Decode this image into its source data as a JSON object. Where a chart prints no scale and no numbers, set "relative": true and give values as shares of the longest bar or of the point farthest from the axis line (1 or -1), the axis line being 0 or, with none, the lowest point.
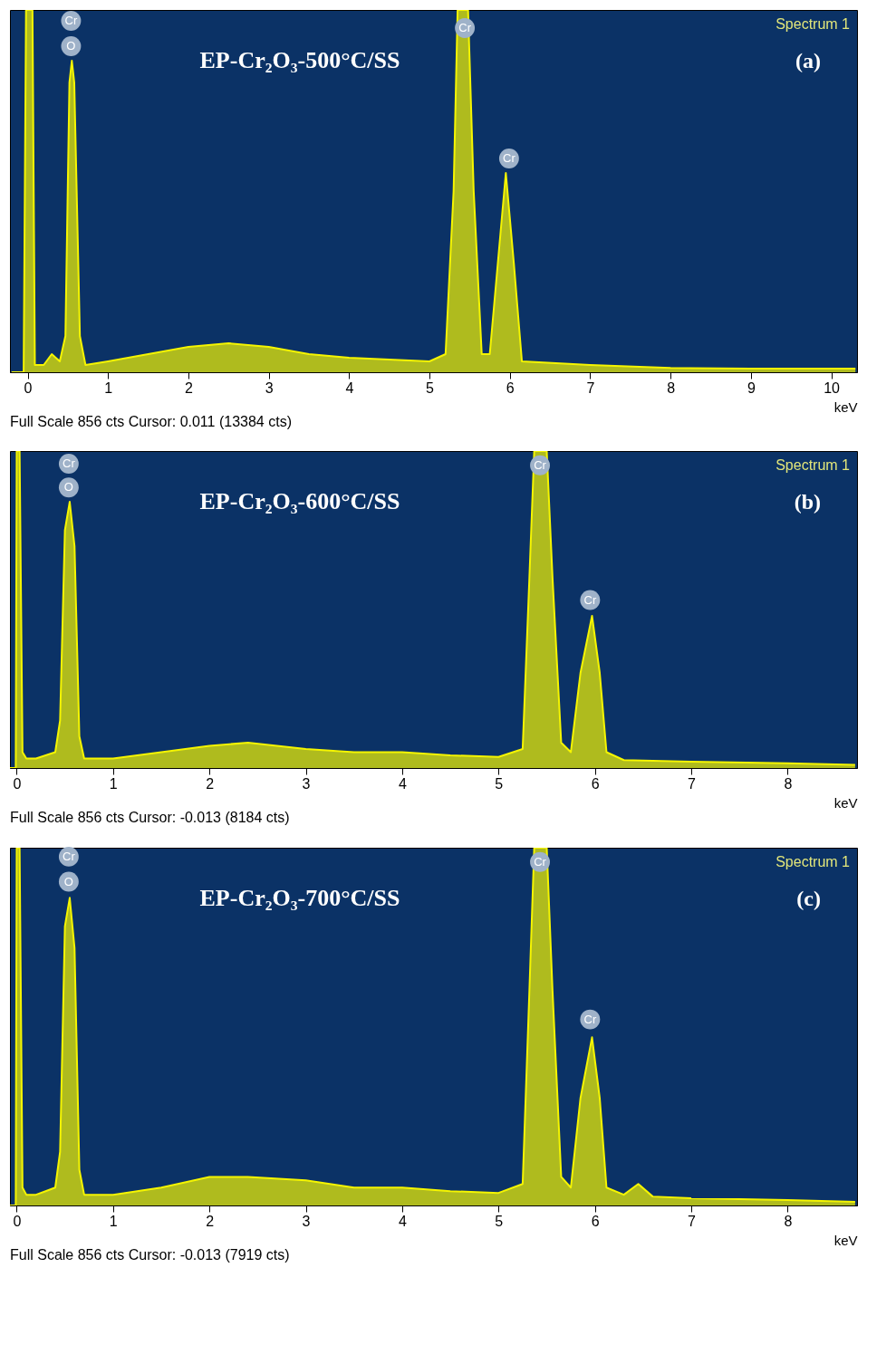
{
  "chart_data": [
    {
      "type": "area",
      "relative": true,
      "title": "EP-Cr₂O₃-500°C/SS",
      "xlabel": "keV",
      "color": "#f5f500",
      "x": [
        -0.2,
        -0.05,
        -0.02,
        0.06,
        0.09,
        0.2,
        0.3,
        0.4,
        0.47,
        0.52,
        0.55,
        0.58,
        0.65,
        0.72,
        1.0,
        1.5,
        2.0,
        2.5,
        3.0,
        3.5,
        4.0,
        4.5,
        5.0,
        5.2,
        5.3,
        5.35,
        5.48,
        5.55,
        5.65,
        5.75,
        5.85,
        5.95,
        6.05,
        6.15,
        7.0,
        8.0,
        9.0,
        10.3
      ],
      "values": [
        0,
        0,
        1,
        1,
        0.02,
        0.02,
        0.05,
        0.03,
        0.1,
        0.8,
        0.86,
        0.8,
        0.1,
        0.02,
        0.03,
        0.05,
        0.07,
        0.08,
        0.07,
        0.05,
        0.04,
        0.035,
        0.03,
        0.05,
        0.5,
        1,
        1,
        0.5,
        0.05,
        0.05,
        0.3,
        0.55,
        0.3,
        0.03,
        0.02,
        0.012,
        0.01,
        0.01
      ],
      "xlim": [
        -0.22,
        10.32
      ],
      "xticks": [
        0,
        1,
        2,
        3,
        4,
        5,
        6,
        7,
        8,
        9,
        10
      ],
      "annotations": [
        "Spectrum 1",
        "(a)",
        "Full Scale 856 cts Cursor: 0.011  (13384 cts)",
        {
          "text": "Cr",
          "x": 0.54,
          "y": 0.97
        },
        {
          "text": "O",
          "x": 0.54,
          "y": 0.9
        },
        {
          "text": "Cr",
          "x": 5.44,
          "y": 0.95
        },
        {
          "text": "Cr",
          "x": 5.99,
          "y": 0.59
        }
      ]
    },
    {
      "type": "area",
      "relative": true,
      "title": "EP-Cr₂O₃-600°C/SS",
      "xlabel": "keV",
      "color": "#f5f500",
      "x": [
        -0.07,
        -0.01,
        0.0,
        0.03,
        0.06,
        0.1,
        0.2,
        0.3,
        0.4,
        0.45,
        0.5,
        0.55,
        0.6,
        0.65,
        0.7,
        1.0,
        1.5,
        2.0,
        2.4,
        3.0,
        3.5,
        4.0,
        4.5,
        5.0,
        5.25,
        5.32,
        5.37,
        5.5,
        5.56,
        5.65,
        5.75,
        5.85,
        5.97,
        6.05,
        6.12,
        6.3,
        7.0,
        8.0,
        8.7
      ],
      "values": [
        0,
        0,
        1,
        1,
        0.05,
        0.03,
        0.03,
        0.04,
        0.05,
        0.15,
        0.75,
        0.84,
        0.7,
        0.1,
        0.03,
        0.03,
        0.05,
        0.07,
        0.08,
        0.06,
        0.05,
        0.05,
        0.04,
        0.035,
        0.06,
        0.6,
        1,
        1,
        0.6,
        0.08,
        0.05,
        0.3,
        0.48,
        0.3,
        0.05,
        0.025,
        0.02,
        0.015,
        0.01
      ],
      "xlim": [
        -0.07,
        8.72
      ],
      "xticks": [
        0,
        1,
        2,
        3,
        4,
        5,
        6,
        7,
        8
      ],
      "annotations": [
        "Spectrum 1",
        "(b)",
        "Full Scale 856 cts Cursor: -0.013  (8184 cts)",
        {
          "text": "Cr",
          "x": 0.54,
          "y": 0.96
        },
        {
          "text": "O",
          "x": 0.54,
          "y": 0.885
        },
        {
          "text": "Cr",
          "x": 5.43,
          "y": 0.955
        },
        {
          "text": "Cr",
          "x": 5.95,
          "y": 0.53
        }
      ]
    },
    {
      "type": "area",
      "relative": true,
      "title": "EP-Cr₂O₃-700°C/SS",
      "xlabel": "keV",
      "color": "#f5f500",
      "x": [
        -0.07,
        -0.01,
        0.0,
        0.03,
        0.06,
        0.1,
        0.2,
        0.3,
        0.4,
        0.45,
        0.5,
        0.55,
        0.6,
        0.65,
        0.7,
        1.0,
        1.5,
        2.0,
        2.4,
        3.0,
        3.5,
        4.0,
        4.5,
        5.0,
        5.25,
        5.32,
        5.37,
        5.5,
        5.56,
        5.65,
        5.75,
        5.85,
        5.97,
        6.05,
        6.12,
        6.3,
        6.45,
        6.6,
        7.0,
        8.0,
        8.7
      ],
      "values": [
        0,
        0,
        1,
        1,
        0.05,
        0.03,
        0.03,
        0.04,
        0.05,
        0.15,
        0.78,
        0.86,
        0.72,
        0.1,
        0.03,
        0.03,
        0.05,
        0.08,
        0.08,
        0.07,
        0.05,
        0.05,
        0.04,
        0.035,
        0.06,
        0.6,
        1,
        1,
        0.6,
        0.08,
        0.05,
        0.3,
        0.47,
        0.3,
        0.05,
        0.03,
        0.06,
        0.025,
        0.02,
        0.015,
        0.01
      ],
      "xlim": [
        -0.07,
        8.72
      ],
      "xticks": [
        0,
        1,
        2,
        3,
        4,
        5,
        6,
        7,
        8
      ],
      "annotations": [
        "Spectrum 1",
        "(c)",
        "Full Scale 856 cts Cursor: -0.013  (7919 cts)",
        {
          "text": "Cr",
          "x": 0.54,
          "y": 0.975
        },
        {
          "text": "O",
          "x": 0.54,
          "y": 0.905
        },
        {
          "text": "Cr",
          "x": 5.43,
          "y": 0.96
        },
        {
          "text": "Cr",
          "x": 5.95,
          "y": 0.52
        }
      ]
    }
  ]
}
